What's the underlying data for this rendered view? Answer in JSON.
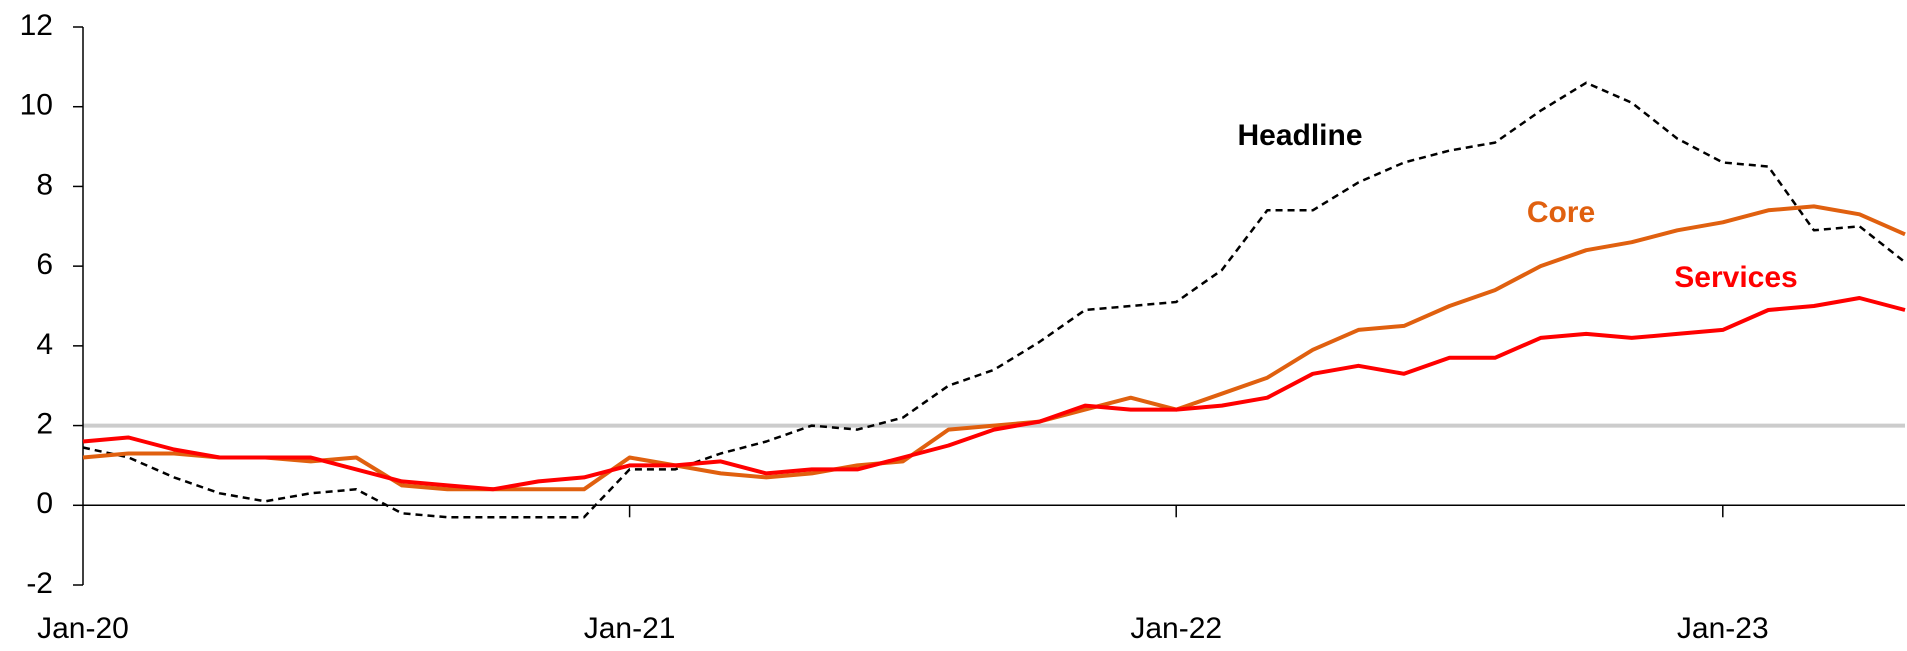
{
  "chart_data": {
    "type": "line",
    "categories": [
      "Jan-20",
      null,
      null,
      null,
      null,
      null,
      null,
      null,
      null,
      null,
      null,
      null,
      "Jan-21",
      null,
      null,
      null,
      null,
      null,
      null,
      null,
      null,
      null,
      null,
      null,
      "Jan-22",
      null,
      null,
      null,
      null,
      null,
      null,
      null,
      null,
      null,
      null,
      null,
      "Jan-23",
      null,
      null,
      null,
      null
    ],
    "series": [
      {
        "name": "Headline",
        "color": "#000000",
        "dash": true,
        "values": [
          1.45,
          1.2,
          0.7,
          0.3,
          0.1,
          0.3,
          0.4,
          -0.2,
          -0.3,
          -0.3,
          -0.3,
          -0.3,
          0.9,
          0.9,
          1.3,
          1.6,
          2.0,
          1.9,
          2.2,
          3.0,
          3.4,
          4.1,
          4.9,
          5.0,
          5.1,
          5.9,
          7.4,
          7.4,
          8.1,
          8.6,
          8.9,
          9.1,
          9.9,
          10.6,
          10.1,
          9.2,
          8.6,
          8.5,
          6.9,
          7.0,
          6.1
        ]
      },
      {
        "name": "Core",
        "color": "#e0600f",
        "dash": false,
        "values": [
          1.2,
          1.3,
          1.3,
          1.2,
          1.2,
          1.1,
          1.2,
          0.5,
          0.4,
          0.4,
          0.4,
          0.4,
          1.2,
          1.0,
          0.8,
          0.7,
          0.8,
          1.0,
          1.1,
          1.9,
          2.0,
          2.1,
          2.4,
          2.7,
          2.4,
          2.8,
          3.2,
          3.9,
          4.4,
          4.5,
          5.0,
          5.4,
          6.0,
          6.4,
          6.6,
          6.9,
          7.1,
          7.4,
          7.5,
          7.3,
          6.8
        ]
      },
      {
        "name": "Services",
        "color": "#ff0000",
        "dash": false,
        "values": [
          1.6,
          1.7,
          1.4,
          1.2,
          1.2,
          1.2,
          0.9,
          0.6,
          0.5,
          0.4,
          0.6,
          0.7,
          1.0,
          1.0,
          1.1,
          0.8,
          0.9,
          0.9,
          1.2,
          1.5,
          1.9,
          2.1,
          2.5,
          2.4,
          2.4,
          2.5,
          2.7,
          3.3,
          3.5,
          3.3,
          3.7,
          3.7,
          4.2,
          4.3,
          4.2,
          4.3,
          4.4,
          4.9,
          5.0,
          5.2,
          4.9
        ]
      }
    ],
    "ylim": [
      -2,
      12
    ],
    "yticks": [
      -2,
      0,
      2,
      4,
      6,
      8,
      10,
      12
    ],
    "reference_line": {
      "value": 2,
      "color": "#cccccc"
    }
  }
}
